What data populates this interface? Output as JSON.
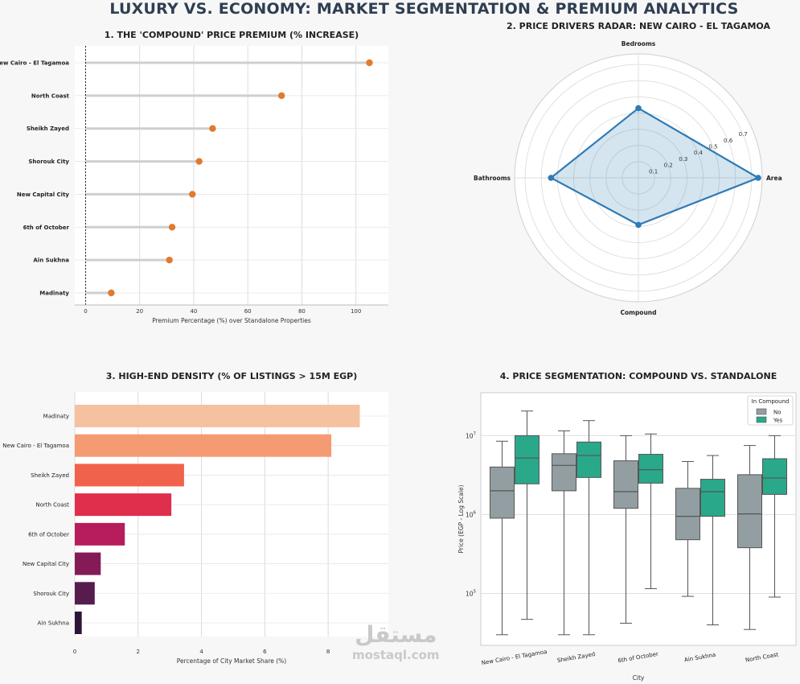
{
  "page": {
    "title": "LUXURY VS. ECONOMY: MARKET SEGMENTATION & PREMIUM ANALYTICS",
    "watermark_ar": "مستقل",
    "watermark_en": "mostaql.com"
  },
  "chart_data": [
    {
      "type": "lollipop",
      "title": "1. THE 'COMPOUND' PRICE PREMIUM (% INCREASE)",
      "xlabel": "Premium Percentage (%) over Standalone Properties",
      "categories": [
        "New Cairo - El Tagamoa",
        "North Coast",
        "Sheikh Zayed",
        "Shorouk City",
        "New Capital City",
        "6th of October",
        "Ain Sukhna",
        "Madinaty"
      ],
      "values": [
        105,
        72.5,
        47,
        42,
        39.5,
        32,
        31,
        9.5
      ],
      "xlim": [
        -4,
        112
      ],
      "xticks": [
        "0",
        "20",
        "40",
        "60",
        "80",
        "100"
      ],
      "color": "#e07b2e"
    },
    {
      "type": "radar",
      "title": "2. PRICE DRIVERS RADAR: NEW CAIRO - EL TAGAMOA",
      "axes": [
        "Area",
        "Bedrooms",
        "Bathrooms",
        "Compound"
      ],
      "values": [
        0.74,
        0.43,
        0.54,
        0.29
      ],
      "rlim": [
        0,
        0.76
      ],
      "rticks": [
        "0.1",
        "0.2",
        "0.3",
        "0.4",
        "0.5",
        "0.6",
        "0.7"
      ],
      "color": "#2f7bb6"
    },
    {
      "type": "bar",
      "orientation": "horizontal",
      "title": "3. HIGH-END DENSITY (% OF LISTINGS > 15M EGP)",
      "xlabel": "Percentage of City Market Share (%)",
      "categories": [
        "Madinaty",
        "New Cairo - El Tagamoa",
        "Sheikh Zayed",
        "North Coast",
        "6th of October",
        "New Capital City",
        "Shorouk City",
        "Ain Sukhna"
      ],
      "values": [
        9.0,
        8.1,
        3.45,
        3.05,
        1.58,
        0.82,
        0.63,
        0.22
      ],
      "xlim": [
        0,
        9.9
      ],
      "xticks": [
        "0",
        "2",
        "4",
        "6",
        "8"
      ],
      "colors": [
        "#f5c2a0",
        "#f49b74",
        "#f0624b",
        "#df2f4c",
        "#b71c5c",
        "#841b57",
        "#571c4e",
        "#2d1538"
      ]
    },
    {
      "type": "boxplot",
      "title": "4. PRICE SEGMENTATION: COMPOUND VS. STANDALONE",
      "xlabel": "City",
      "ylabel": "Price (EGP - Log Scale)",
      "yscale": "log",
      "ylim": [
        22000,
        35000000
      ],
      "yticks": [
        {
          "value": 100000,
          "base": "10",
          "exp": "5"
        },
        {
          "value": 1000000,
          "base": "10",
          "exp": "6"
        },
        {
          "value": 10000000,
          "base": "10",
          "exp": "7"
        }
      ],
      "categories": [
        "New Cairo - El Tagamoa",
        "Sheikh Zayed",
        "6th of October",
        "Ain Sukhna",
        "North Coast"
      ],
      "legend": {
        "title": "In Compound",
        "position": "top-right",
        "entries": [
          "No",
          "Yes"
        ]
      },
      "series": [
        {
          "name": "No",
          "color": "#939ea2",
          "boxes": [
            {
              "whislo": 30000,
              "q1": 900000,
              "med": 2000000,
              "q3": 4000000,
              "whishi": 8500000
            },
            {
              "whislo": 30000,
              "q1": 2000000,
              "med": 4200000,
              "q3": 5900000,
              "whishi": 11500000
            },
            {
              "whislo": 42000,
              "q1": 1200000,
              "med": 1950000,
              "q3": 4800000,
              "whishi": 10000000
            },
            {
              "whislo": 92000,
              "q1": 480000,
              "med": 950000,
              "q3": 2150000,
              "whishi": 4700000
            },
            {
              "whislo": 35000,
              "q1": 380000,
              "med": 1020000,
              "q3": 3200000,
              "whishi": 7500000
            }
          ]
        },
        {
          "name": "Yes",
          "color": "#2aa88a",
          "boxes": [
            {
              "whislo": 47000,
              "q1": 2450000,
              "med": 5200000,
              "q3": 10000000,
              "whishi": 20500000
            },
            {
              "whislo": 30000,
              "q1": 2950000,
              "med": 5600000,
              "q3": 8300000,
              "whishi": 15500000
            },
            {
              "whislo": 115000,
              "q1": 2500000,
              "med": 3700000,
              "q3": 5800000,
              "whishi": 10500000
            },
            {
              "whislo": 40000,
              "q1": 950000,
              "med": 1950000,
              "q3": 2800000,
              "whishi": 5600000
            },
            {
              "whislo": 90000,
              "q1": 1800000,
              "med": 2900000,
              "q3": 5100000,
              "whishi": 10000000
            }
          ]
        }
      ]
    }
  ]
}
